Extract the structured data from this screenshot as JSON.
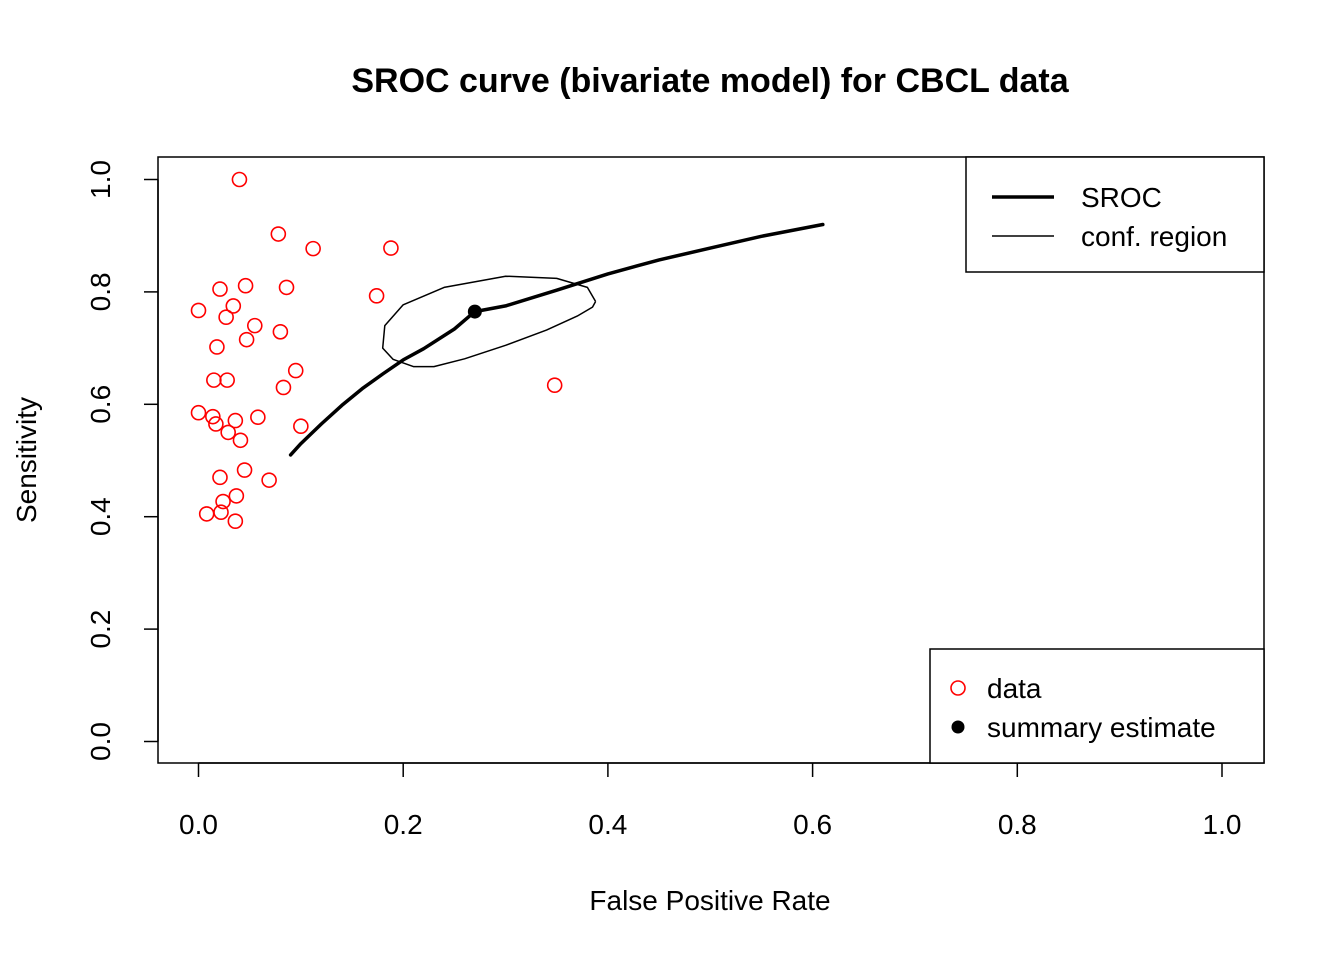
{
  "chart_data": {
    "type": "scatter",
    "title": "SROC curve (bivariate model) for CBCL data",
    "xlabel": "False Positive Rate",
    "ylabel": "Sensitivity",
    "xlim": [
      0,
      1
    ],
    "ylim": [
      0,
      1
    ],
    "x_ticks": [
      "0.0",
      "0.2",
      "0.4",
      "0.6",
      "0.8",
      "1.0"
    ],
    "y_ticks": [
      "0.0",
      "0.2",
      "0.4",
      "0.6",
      "0.8",
      "1.0"
    ],
    "grid": false,
    "series": [
      {
        "name": "data",
        "kind": "points",
        "marker": "open-circle",
        "color": "#ff0000",
        "points": [
          [
            0.04,
            1.0
          ],
          [
            0.078,
            0.903
          ],
          [
            0.112,
            0.877
          ],
          [
            0.188,
            0.878
          ],
          [
            0.046,
            0.811
          ],
          [
            0.086,
            0.808
          ],
          [
            0.021,
            0.805
          ],
          [
            0.174,
            0.793
          ],
          [
            0.034,
            0.775
          ],
          [
            0.0,
            0.767
          ],
          [
            0.027,
            0.755
          ],
          [
            0.055,
            0.74
          ],
          [
            0.08,
            0.729
          ],
          [
            0.047,
            0.715
          ],
          [
            0.018,
            0.702
          ],
          [
            0.095,
            0.66
          ],
          [
            0.015,
            0.643
          ],
          [
            0.028,
            0.643
          ],
          [
            0.083,
            0.63
          ],
          [
            0.348,
            0.634
          ],
          [
            0.0,
            0.585
          ],
          [
            0.014,
            0.578
          ],
          [
            0.058,
            0.577
          ],
          [
            0.036,
            0.571
          ],
          [
            0.017,
            0.565
          ],
          [
            0.1,
            0.561
          ],
          [
            0.029,
            0.55
          ],
          [
            0.041,
            0.536
          ],
          [
            0.045,
            0.483
          ],
          [
            0.021,
            0.47
          ],
          [
            0.069,
            0.465
          ],
          [
            0.037,
            0.437
          ],
          [
            0.024,
            0.427
          ],
          [
            0.008,
            0.405
          ],
          [
            0.022,
            0.408
          ],
          [
            0.036,
            0.392
          ]
        ]
      },
      {
        "name": "summary estimate",
        "kind": "points",
        "marker": "filled-circle",
        "color": "#000000",
        "points": [
          [
            0.27,
            0.765
          ]
        ]
      },
      {
        "name": "SROC",
        "kind": "line",
        "color": "#000000",
        "points": [
          [
            0.09,
            0.51
          ],
          [
            0.1,
            0.53
          ],
          [
            0.12,
            0.565
          ],
          [
            0.14,
            0.598
          ],
          [
            0.16,
            0.628
          ],
          [
            0.18,
            0.654
          ],
          [
            0.2,
            0.679
          ],
          [
            0.22,
            0.699
          ],
          [
            0.25,
            0.734
          ],
          [
            0.27,
            0.765
          ],
          [
            0.3,
            0.775
          ],
          [
            0.35,
            0.803
          ],
          [
            0.4,
            0.832
          ],
          [
            0.45,
            0.857
          ],
          [
            0.5,
            0.878
          ],
          [
            0.55,
            0.899
          ],
          [
            0.61,
            0.92
          ]
        ]
      },
      {
        "name": "conf. region",
        "kind": "line",
        "color": "#000000",
        "points": [
          [
            0.388,
            0.783
          ],
          [
            0.385,
            0.773
          ],
          [
            0.37,
            0.757
          ],
          [
            0.34,
            0.732
          ],
          [
            0.3,
            0.705
          ],
          [
            0.26,
            0.681
          ],
          [
            0.23,
            0.667
          ],
          [
            0.21,
            0.667
          ],
          [
            0.19,
            0.68
          ],
          [
            0.18,
            0.7
          ],
          [
            0.182,
            0.74
          ],
          [
            0.2,
            0.777
          ],
          [
            0.24,
            0.808
          ],
          [
            0.3,
            0.828
          ],
          [
            0.35,
            0.824
          ],
          [
            0.38,
            0.808
          ],
          [
            0.388,
            0.783
          ]
        ]
      }
    ],
    "legends": [
      {
        "position": "top-right",
        "items": [
          {
            "label": "SROC",
            "symbol": "thick-line",
            "color": "#000000"
          },
          {
            "label": "conf. region",
            "symbol": "thin-line",
            "color": "#000000"
          }
        ]
      },
      {
        "position": "bottom-right",
        "items": [
          {
            "label": "data",
            "symbol": "open-circle",
            "color": "#ff0000"
          },
          {
            "label": "summary estimate",
            "symbol": "filled-circle",
            "color": "#000000"
          }
        ]
      }
    ]
  }
}
